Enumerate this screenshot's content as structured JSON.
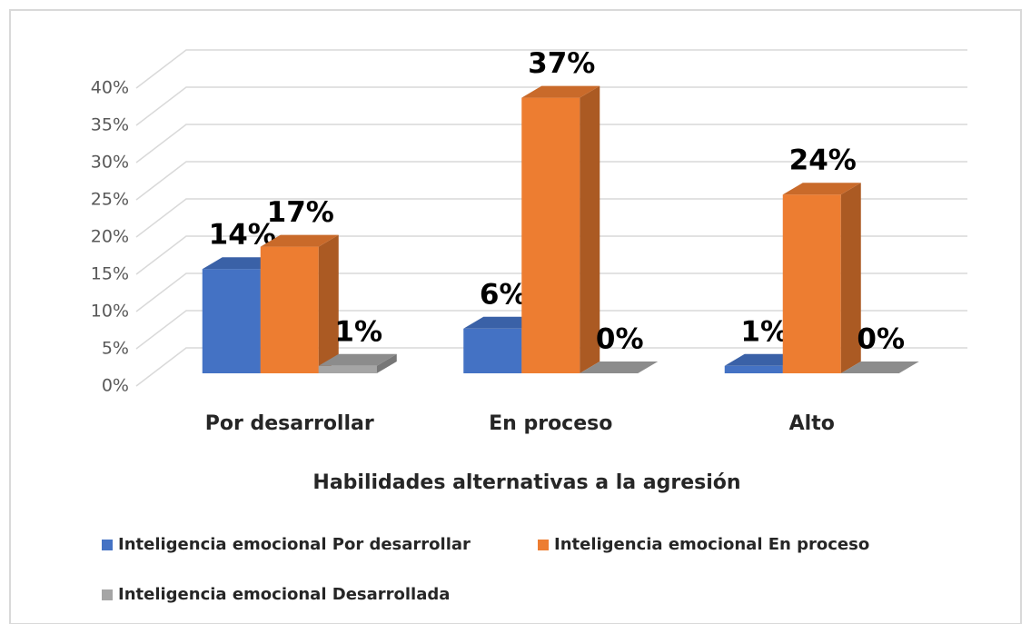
{
  "chart_data": {
    "type": "bar3d",
    "x_label": "Habilidades alternativas a la agresión",
    "categories": [
      "Por desarrollar",
      "En proceso",
      "Alto"
    ],
    "series": [
      {
        "name": "Inteligencia emocional Por desarrollar",
        "color": "#4472c4",
        "values": [
          14,
          6,
          1
        ],
        "value_labels": [
          "14%",
          "6%",
          "1%"
        ]
      },
      {
        "name": "Inteligencia emocional En proceso",
        "color": "#ed7d31",
        "values": [
          17,
          37,
          24
        ],
        "value_labels": [
          "17%",
          "37%",
          "24%"
        ]
      },
      {
        "name": "Inteligencia emocional Desarrollada",
        "color": "#a5a5a5",
        "values": [
          1,
          0,
          0
        ],
        "value_labels": [
          "1%",
          "0%",
          "0%"
        ]
      }
    ],
    "ylim": [
      0,
      40
    ],
    "yticks": [
      {
        "value": 0,
        "label": "0%"
      },
      {
        "value": 5,
        "label": "5%"
      },
      {
        "value": 10,
        "label": "10%"
      },
      {
        "value": 15,
        "label": "15%"
      },
      {
        "value": 20,
        "label": "20%"
      },
      {
        "value": 25,
        "label": "25%"
      },
      {
        "value": 30,
        "label": "30%"
      },
      {
        "value": 35,
        "label": "35%"
      },
      {
        "value": 40,
        "label": "40%"
      }
    ],
    "grid": true,
    "legend": "bottom"
  }
}
